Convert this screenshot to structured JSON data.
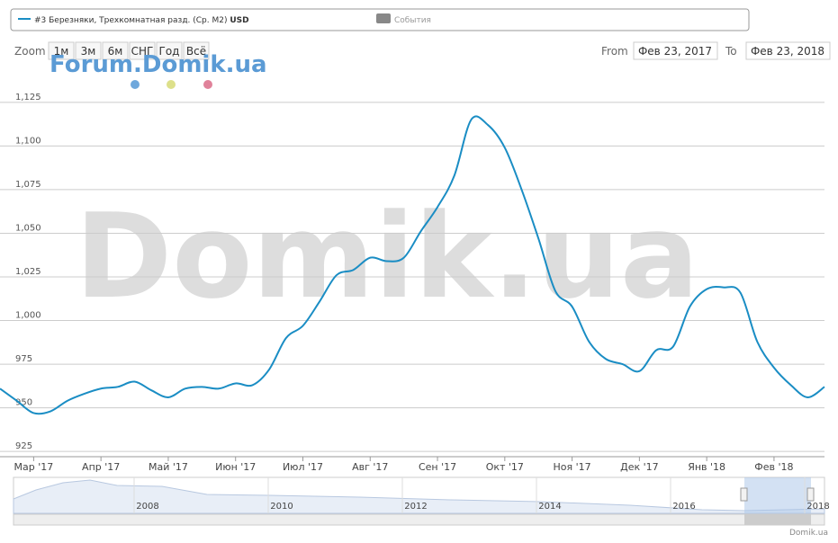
{
  "chart_data": {
    "type": "line",
    "legend_name": "#3 Березняки, Трехкомнатная разд. (Ср. M2)",
    "legend_unit": "USD",
    "events_label": "События",
    "categories": [
      null,
      null,
      "Мар '17",
      null,
      null,
      null,
      "Апр '17",
      null,
      null,
      null,
      "Май '17",
      null,
      null,
      null,
      "Июн '17",
      null,
      null,
      null,
      "Июл '17",
      null,
      null,
      null,
      "Авг '17",
      null,
      null,
      null,
      "Сен '17",
      null,
      null,
      null,
      "Окт '17",
      null,
      null,
      null,
      "Ноя '17",
      null,
      null,
      null,
      "Дек '17",
      null,
      null,
      null,
      "Янв '18",
      null,
      null,
      null,
      "Фев '18",
      null,
      null,
      null
    ],
    "series": [
      {
        "name": "#3 Березняки, Трехкомнатная разд. (Ср. M2)",
        "color": "#1a8dc4",
        "values": [
          961,
          954,
          947,
          948,
          954,
          958,
          961,
          962,
          965,
          960,
          956,
          961,
          962,
          961,
          964,
          963,
          972,
          990,
          997,
          1011,
          1026,
          1029,
          1036,
          1034,
          1036,
          1051,
          1065,
          1083,
          1115,
          1112,
          1099,
          1075,
          1047,
          1017,
          1008,
          988,
          978,
          975,
          971,
          983,
          985,
          1008,
          1018,
          1019,
          1016,
          988,
          973,
          963,
          956,
          962
        ]
      }
    ],
    "ylim": [
      922,
      1145
    ],
    "yticks": [
      925,
      950,
      975,
      {
        "value": 1000,
        "label": "1,000"
      },
      {
        "value": 1025,
        "label": "1,025"
      },
      {
        "value": 1050,
        "label": "1,050"
      },
      {
        "value": 1075,
        "label": "1,075"
      },
      {
        "value": 1100,
        "label": "1,100"
      },
      {
        "value": 1125,
        "label": "1,125"
      }
    ],
    "grid": true
  },
  "ui": {
    "zoom": "Zoom",
    "buttons": [
      "1м",
      "3м",
      "6м",
      "СНГ",
      "Год",
      "Всё"
    ],
    "from": "From",
    "from_date": "Фев 23, 2017",
    "to": "To",
    "to_date": "Фев 23, 2018",
    "watermark_small": "Forum.Domik.ua",
    "watermark_big": "Domik.ua",
    "navigator_years": [
      "2008",
      "2010",
      "2012",
      "2014",
      "2016",
      "2018"
    ],
    "credit": "Domik.ua"
  }
}
